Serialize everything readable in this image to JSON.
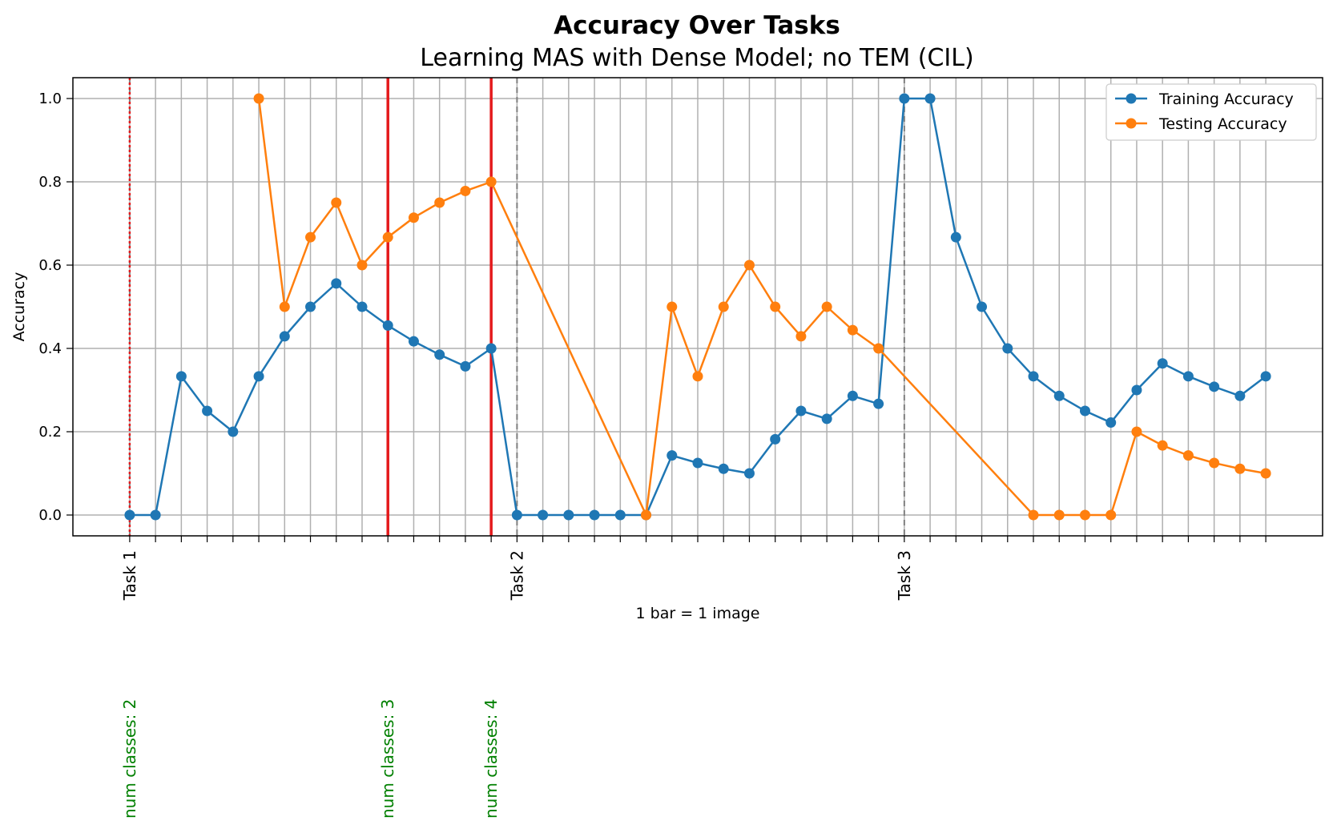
{
  "chart_data": {
    "type": "line",
    "title": "Accuracy Over Tasks",
    "subtitle": "Learning MAS with Dense Model; no TEM (CIL)",
    "xlabel": "1 bar = 1 image",
    "ylabel": "Accuracy",
    "ylim": [
      -0.05,
      1.05
    ],
    "xlim": [
      -2.2,
      46.2
    ],
    "yticks": [
      0.0,
      0.2,
      0.4,
      0.6,
      0.8,
      1.0
    ],
    "ytick_labels": [
      "0.0",
      "0.2",
      "0.4",
      "0.6",
      "0.8",
      "1.0"
    ],
    "grid": true,
    "legend_position": "top-right",
    "colors": {
      "training": "#1f77b4",
      "testing": "#ff7f0e",
      "class_line": "#e41a1c",
      "class_text": "#008000",
      "task_line": "#808080"
    },
    "series": [
      {
        "name": "Training Accuracy",
        "x": [
          0,
          1,
          2,
          3,
          4,
          5,
          6,
          7,
          8,
          9,
          10,
          11,
          12,
          13,
          14,
          15,
          16,
          17,
          18,
          19,
          20,
          21,
          22,
          23,
          24,
          25,
          26,
          27,
          28,
          29,
          30,
          31,
          32,
          33,
          34,
          35,
          36,
          37,
          38,
          39,
          40,
          41,
          42,
          43,
          44
        ],
        "y": [
          0.0,
          0.0,
          0.333,
          0.25,
          0.2,
          0.333,
          0.429,
          0.5,
          0.556,
          0.5,
          0.455,
          0.417,
          0.385,
          0.357,
          0.4,
          0.0,
          0.0,
          0.0,
          0.0,
          0.0,
          0.0,
          0.143,
          0.125,
          0.111,
          0.1,
          0.182,
          0.25,
          0.231,
          0.286,
          0.267,
          1.0,
          1.0,
          0.667,
          0.5,
          0.4,
          0.333,
          0.286,
          0.25,
          0.222,
          0.3,
          0.364,
          0.333,
          0.308,
          0.286,
          0.333
        ]
      },
      {
        "name": "Testing Accuracy",
        "x": [
          5,
          6,
          7,
          8,
          9,
          10,
          11,
          12,
          13,
          14,
          20,
          21,
          22,
          23,
          24,
          25,
          26,
          27,
          28,
          29,
          35,
          36,
          37,
          38,
          39,
          40,
          41,
          42,
          43,
          44
        ],
        "y": [
          1.0,
          0.5,
          0.667,
          0.75,
          0.6,
          0.667,
          0.714,
          0.75,
          0.778,
          0.8,
          0.0,
          0.5,
          0.333,
          0.5,
          0.6,
          0.5,
          0.429,
          0.5,
          0.444,
          0.4,
          0.0,
          0.0,
          0.0,
          0.0,
          0.2,
          0.167,
          0.143,
          0.125,
          0.111,
          0.1
        ]
      }
    ],
    "task_markers": [
      {
        "x": 0,
        "label": "Task 1"
      },
      {
        "x": 15,
        "label": "Task 2"
      },
      {
        "x": 30,
        "label": "Task 3"
      }
    ],
    "class_markers": [
      {
        "x": 0,
        "label": "num classes: 2"
      },
      {
        "x": 10,
        "label": "num classes: 3"
      },
      {
        "x": 14,
        "label": "num classes: 4"
      }
    ]
  }
}
